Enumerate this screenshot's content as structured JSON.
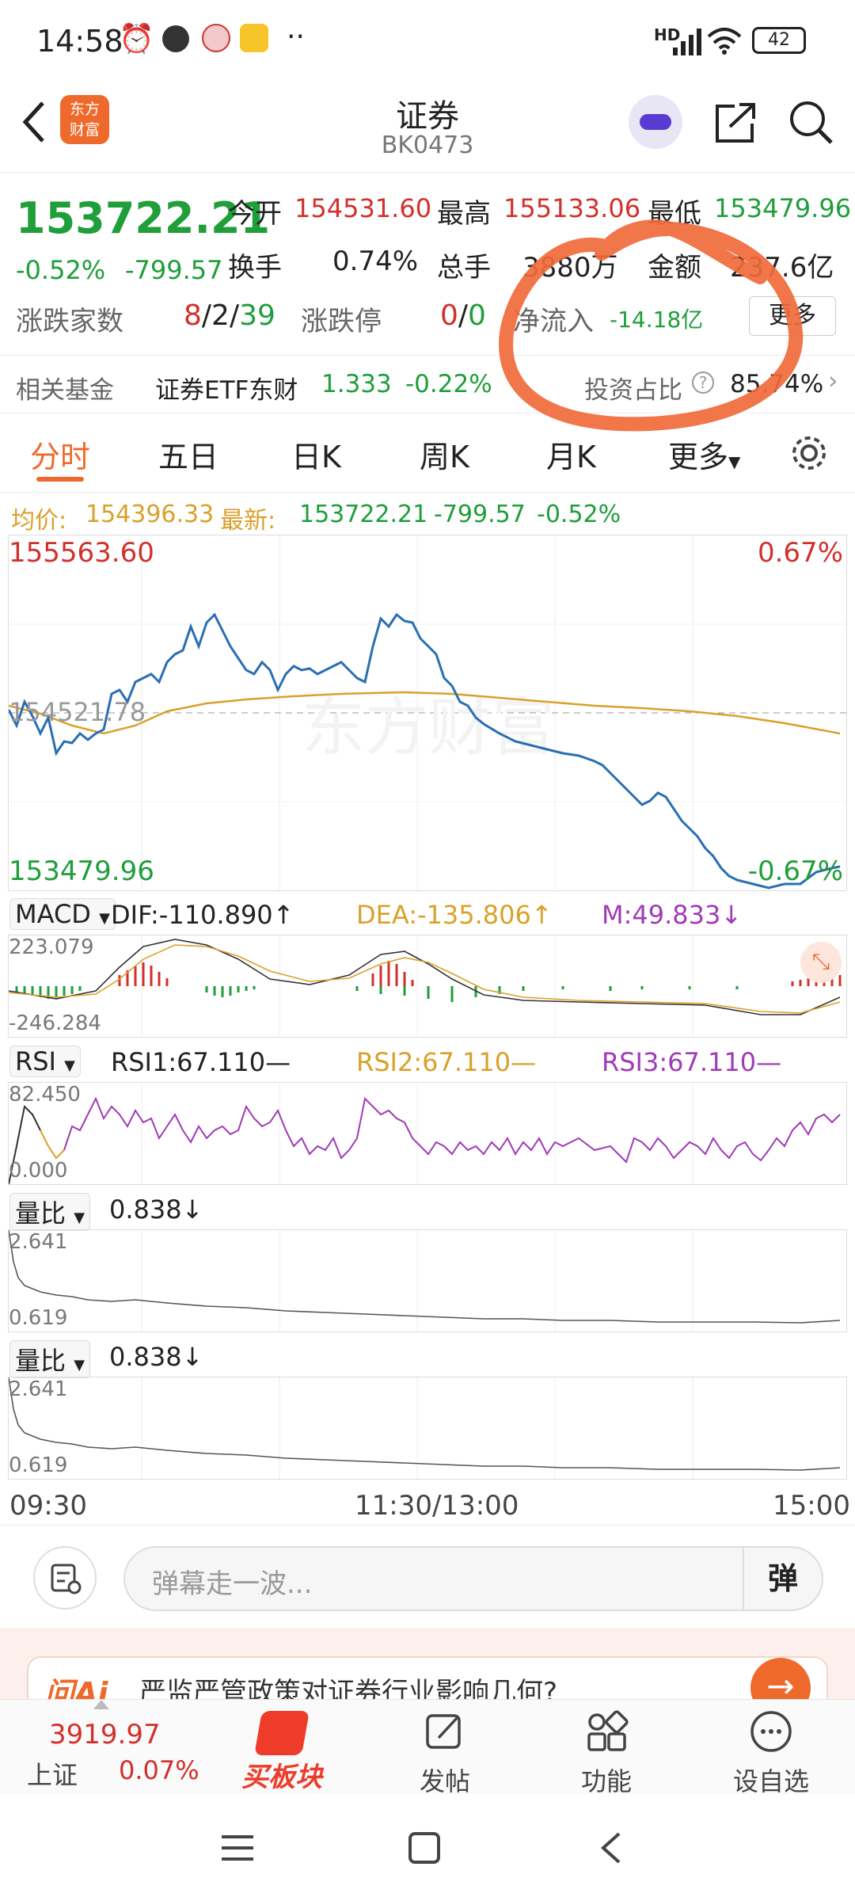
{
  "status": {
    "time": "14:58",
    "network": "HD",
    "battery": "42",
    "dots": "··"
  },
  "nav": {
    "title": "证券",
    "code": "BK0473",
    "logo_line1": "东方",
    "logo_line2": "财富"
  },
  "quote": {
    "price": "153722.21",
    "change_pct": "-0.52%",
    "change_amt": "-799.57",
    "open_label": "今开",
    "open": "154531.60",
    "high_label": "最高",
    "high": "155133.06",
    "low_label": "最低",
    "low": "153479.96",
    "turnover_label": "换手",
    "turnover": "0.74%",
    "volume_label": "总手",
    "volume": "3880万",
    "amount_label": "金额",
    "amount": "237.6亿",
    "breadth_label": "涨跌家数",
    "breadth_up": "8",
    "breadth_flat": "2",
    "breadth_down": "39",
    "limit_label": "涨跌停",
    "limit_up": "0",
    "limit_down": "0",
    "inflow_label": "净流入",
    "inflow": "-14.18亿",
    "more_button": "更多"
  },
  "fund": {
    "label": "相关基金",
    "name": "证券ETF东财",
    "price": "1.333",
    "pct": "-0.22%",
    "ratio_label": "投资占比",
    "ratio": "85.74%"
  },
  "tabs": [
    "分时",
    "五日",
    "日K",
    "周K",
    "月K",
    "更多"
  ],
  "avg": {
    "avg_label": "均价:",
    "avg_value": "154396.33",
    "last_label": "最新:",
    "last_value": "153722.21",
    "change_amt": "-799.57",
    "change_pct": "-0.52%"
  },
  "main_chart": {
    "top_price": "155563.60",
    "top_pct": "0.67%",
    "mid_price": "154521.78",
    "bottom_price": "153479.96",
    "bottom_pct": "-0.67%"
  },
  "macd": {
    "selector": "MACD",
    "dif": "DIF:-110.890↑",
    "dea": "DEA:-135.806↑",
    "m": "M:49.833↓",
    "top": "223.079",
    "bottom": "-246.284"
  },
  "rsi": {
    "selector": "RSI",
    "rsi1": "RSI1:67.110—",
    "rsi2": "RSI2:67.110—",
    "rsi3": "RSI3:67.110—",
    "top": "82.450",
    "bottom": "0.000"
  },
  "vr1": {
    "selector": "量比",
    "value": "0.838↓",
    "top": "2.641",
    "bottom": "0.619"
  },
  "vr2": {
    "selector": "量比",
    "value": "0.838↓",
    "top": "2.641",
    "bottom": "0.619"
  },
  "time_axis": {
    "start": "09:30",
    "mid": "11:30/13:00",
    "end": "15:00"
  },
  "danmu": {
    "placeholder": "弹幕走一波...",
    "button": "弹"
  },
  "ai": {
    "brand": "问Ai",
    "question": "严监严管政策对证券行业影响几何?"
  },
  "bottom_nav": {
    "index_value": "3919.97",
    "index_name": "上证",
    "index_pct": "0.07%",
    "buy": "买板块",
    "post": "发帖",
    "func": "功能",
    "watch": "设自选"
  },
  "colors": {
    "up": "#d2302b",
    "down": "#1f9e3a",
    "accent": "#ee6a2c",
    "annotation": "#f06a3a"
  }
}
